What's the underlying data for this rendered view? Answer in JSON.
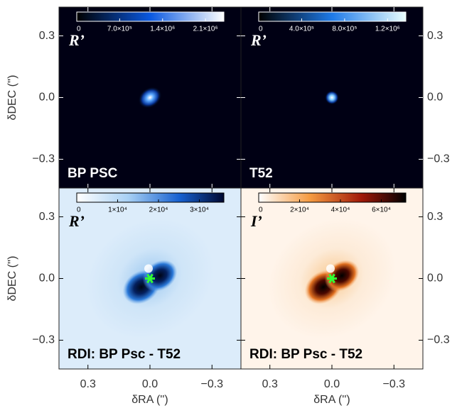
{
  "axes": {
    "xlabel": "δRA ('')",
    "ylabel": "δDEC ('')",
    "lim": [
      0.44,
      -0.44
    ],
    "ticks": [
      {
        "value": 0.3,
        "label": "0.3"
      },
      {
        "value": 0,
        "label": "0.0"
      },
      {
        "value": -0.3,
        "label": "−0.3"
      }
    ]
  },
  "panels": [
    {
      "band": "R’",
      "name": "BP PSC",
      "colorbar": {
        "lim": [
          0,
          2400000
        ],
        "ticks": [
          0,
          {
            "value": 700000,
            "label": "7.0×10⁵"
          },
          {
            "value": 1400000,
            "label": "1.4×10⁶"
          },
          {
            "value": 2100000,
            "label": "2.1×10⁶"
          }
        ]
      }
    },
    {
      "band": "R’",
      "name": "T52",
      "colorbar": {
        "lim": [
          0,
          1370000
        ],
        "ticks": [
          0,
          {
            "value": 400000,
            "label": "4.0×10⁵"
          },
          {
            "value": 800000,
            "label": "8.0×10⁵"
          },
          {
            "value": 1200000,
            "label": "1.2×10⁶"
          }
        ]
      }
    },
    {
      "band": "R’",
      "name": "RDI: BP Psc - T52",
      "colorbar": {
        "lim": [
          0,
          36000
        ],
        "ticks": [
          0,
          {
            "value": 10000,
            "label": "1×10⁴"
          },
          {
            "value": 20000,
            "label": "2×10⁴"
          },
          {
            "value": 30000,
            "label": "3×10⁴"
          }
        ]
      }
    },
    {
      "band": "I’",
      "name": "RDI: BP Psc - T52",
      "colorbar": {
        "lim": [
          0,
          72000
        ],
        "ticks": [
          0,
          {
            "value": 20000,
            "label": "2×10⁴"
          },
          {
            "value": 40000,
            "label": "4×10⁴"
          },
          {
            "value": 60000,
            "label": "6×10⁴"
          }
        ]
      }
    }
  ]
}
